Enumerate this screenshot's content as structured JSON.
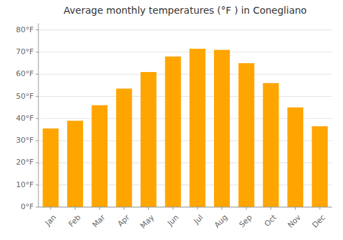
{
  "chart_data": {
    "type": "bar",
    "title": "Average monthly temperatures (°F ) in Conegliano",
    "categories": [
      "Jan",
      "Feb",
      "Mar",
      "Apr",
      "May",
      "Jun",
      "Jul",
      "Aug",
      "Sep",
      "Oct",
      "Nov",
      "Dec"
    ],
    "values": [
      35.5,
      39.0,
      46.0,
      53.5,
      61.0,
      68.0,
      71.5,
      71.0,
      65.0,
      56.0,
      45.0,
      36.5
    ],
    "color": "#FFA500",
    "ylim": [
      0,
      83
    ],
    "yticks": [
      {
        "value": 0,
        "label": "0°F"
      },
      {
        "value": 10,
        "label": "10°F"
      },
      {
        "value": 20,
        "label": "20°F"
      },
      {
        "value": 30,
        "label": "30°F"
      },
      {
        "value": 40,
        "label": "40°F"
      },
      {
        "value": 50,
        "label": "50°F"
      },
      {
        "value": 60,
        "label": "60°F"
      },
      {
        "value": 70,
        "label": "70°F"
      },
      {
        "value": 80,
        "label": "80°F"
      }
    ],
    "grid": true
  }
}
